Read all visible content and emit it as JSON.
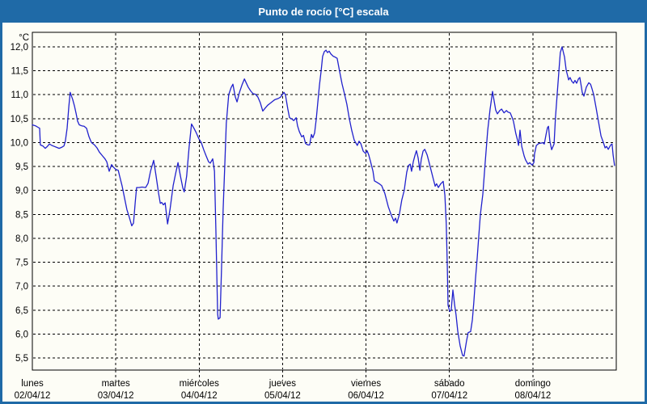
{
  "window": {
    "title": "Punto de rocío [°C] escala"
  },
  "colors": {
    "title_bar": "#1f6aa7",
    "window_border": "#1f6aa7",
    "title_text": "#ffffff",
    "plot_background": "#fdfdf6",
    "grid": "#000000",
    "line": "#2121cd"
  },
  "chart_data": {
    "type": "line",
    "title": "Punto de rocío [°C] escala",
    "ylabel": "°C",
    "y_unit": "°C",
    "ylim": [
      5.5,
      12.0
    ],
    "y_tick_step": 0.5,
    "decimal_separator": ",",
    "y_tick_labels": [
      "12,0",
      "11,5",
      "11,0",
      "10,5",
      "10,0",
      "9,5",
      "9,0",
      "8,5",
      "8,0",
      "7,5",
      "7,0",
      "6,5",
      "6,0",
      "5,5"
    ],
    "x_unit": "hours since lunes 02/04/12 00:00",
    "xlim": [
      0,
      168
    ],
    "x_day_labels": [
      {
        "name": "lunes",
        "date": "02/04/12"
      },
      {
        "name": "martes",
        "date": "03/04/12"
      },
      {
        "name": "miércoles",
        "date": "04/04/12"
      },
      {
        "name": "jueves",
        "date": "05/04/12"
      },
      {
        "name": "viernes",
        "date": "06/04/12"
      },
      {
        "name": "sábado",
        "date": "07/04/12"
      },
      {
        "name": "domingo",
        "date": "08/04/12"
      }
    ],
    "grid": "dashed",
    "legend": "none",
    "series": [
      {
        "name": "Punto de rocío",
        "color": "#2121cd",
        "points": [
          [
            0,
            10.37
          ],
          [
            0.9,
            10.35
          ],
          [
            1.6,
            10.32
          ],
          [
            2.1,
            10.3
          ],
          [
            2.3,
            9.95
          ],
          [
            3,
            9.93
          ],
          [
            3.7,
            9.88
          ],
          [
            4.2,
            9.91
          ],
          [
            4.9,
            9.97
          ],
          [
            5.6,
            9.94
          ],
          [
            6.3,
            9.92
          ],
          [
            7,
            9.9
          ],
          [
            7.7,
            9.88
          ],
          [
            8.4,
            9.9
          ],
          [
            9.1,
            9.93
          ],
          [
            9.5,
            10.03
          ],
          [
            10,
            10.3
          ],
          [
            10.5,
            10.75
          ],
          [
            10.9,
            11.05
          ],
          [
            11.6,
            10.9
          ],
          [
            12.1,
            10.77
          ],
          [
            12.6,
            10.6
          ],
          [
            13,
            10.45
          ],
          [
            13.5,
            10.37
          ],
          [
            14.2,
            10.35
          ],
          [
            14.9,
            10.34
          ],
          [
            15.6,
            10.3
          ],
          [
            16.3,
            10.12
          ],
          [
            17,
            10
          ],
          [
            17.9,
            9.95
          ],
          [
            18.6,
            9.89
          ],
          [
            19.3,
            9.8
          ],
          [
            20.2,
            9.72
          ],
          [
            20.9,
            9.66
          ],
          [
            21.4,
            9.6
          ],
          [
            22.1,
            9.4
          ],
          [
            22.8,
            9.54
          ],
          [
            23.3,
            9.49
          ],
          [
            24,
            9.44
          ],
          [
            24.7,
            9.42
          ],
          [
            25.1,
            9.3
          ],
          [
            25.8,
            9.1
          ],
          [
            26.5,
            8.85
          ],
          [
            27.2,
            8.6
          ],
          [
            27.9,
            8.44
          ],
          [
            28.6,
            8.26
          ],
          [
            29.1,
            8.32
          ],
          [
            29.6,
            8.75
          ],
          [
            30,
            9.06
          ],
          [
            30.7,
            9.06
          ],
          [
            31.6,
            9.07
          ],
          [
            32.6,
            9.06
          ],
          [
            33.3,
            9.15
          ],
          [
            34,
            9.4
          ],
          [
            34.9,
            9.63
          ],
          [
            35.6,
            9.3
          ],
          [
            36.3,
            8.95
          ],
          [
            36.8,
            8.73
          ],
          [
            37.2,
            8.75
          ],
          [
            37.7,
            8.7
          ],
          [
            38.2,
            8.74
          ],
          [
            38.9,
            8.3
          ],
          [
            39.6,
            8.6
          ],
          [
            40.5,
            9.1
          ],
          [
            41.2,
            9.35
          ],
          [
            41.9,
            9.58
          ],
          [
            42.6,
            9.3
          ],
          [
            43.3,
            9.05
          ],
          [
            43.7,
            8.97
          ],
          [
            44.4,
            9.3
          ],
          [
            45.1,
            9.9
          ],
          [
            45.8,
            10.39
          ],
          [
            46.5,
            10.3
          ],
          [
            47.2,
            10.2
          ],
          [
            47.9,
            10.08
          ],
          [
            48.6,
            10
          ],
          [
            49.3,
            9.85
          ],
          [
            50,
            9.72
          ],
          [
            50.7,
            9.6
          ],
          [
            51.2,
            9.57
          ],
          [
            51.9,
            9.66
          ],
          [
            52.4,
            9.4
          ],
          [
            52.8,
            8.2
          ],
          [
            53.3,
            6.42
          ],
          [
            53.5,
            6.31
          ],
          [
            54,
            6.34
          ],
          [
            54.4,
            7.3
          ],
          [
            54.9,
            8.6
          ],
          [
            55.4,
            9.6
          ],
          [
            55.8,
            10.4
          ],
          [
            56.5,
            11
          ],
          [
            57.2,
            11.15
          ],
          [
            57.7,
            11.22
          ],
          [
            58.4,
            10.95
          ],
          [
            58.9,
            10.85
          ],
          [
            59.6,
            11.05
          ],
          [
            60.3,
            11.2
          ],
          [
            61,
            11.33
          ],
          [
            61.7,
            11.22
          ],
          [
            62.1,
            11.16
          ],
          [
            62.8,
            11.08
          ],
          [
            63.5,
            11.02
          ],
          [
            64.2,
            11.01
          ],
          [
            64.9,
            10.95
          ],
          [
            65.6,
            10.83
          ],
          [
            66.3,
            10.66
          ],
          [
            67,
            10.72
          ],
          [
            67.7,
            10.78
          ],
          [
            68.4,
            10.82
          ],
          [
            69.1,
            10.86
          ],
          [
            69.8,
            10.9
          ],
          [
            70.7,
            10.92
          ],
          [
            71.4,
            10.95
          ],
          [
            71.9,
            11
          ],
          [
            72.4,
            11.05
          ],
          [
            72.8,
            11
          ],
          [
            73.5,
            10.7
          ],
          [
            74,
            10.52
          ],
          [
            74.5,
            10.5
          ],
          [
            75.2,
            10.46
          ],
          [
            75.9,
            10.52
          ],
          [
            76.3,
            10.35
          ],
          [
            76.8,
            10.23
          ],
          [
            77.5,
            10.12
          ],
          [
            78,
            10.15
          ],
          [
            78.6,
            9.98
          ],
          [
            79.3,
            9.95
          ],
          [
            79.8,
            9.95
          ],
          [
            80.3,
            10.17
          ],
          [
            80.7,
            10.1
          ],
          [
            81.2,
            10.2
          ],
          [
            81.7,
            10.5
          ],
          [
            82.1,
            10.81
          ],
          [
            82.6,
            11.2
          ],
          [
            83.1,
            11.5
          ],
          [
            83.5,
            11.8
          ],
          [
            84,
            11.9
          ],
          [
            84.5,
            11.93
          ],
          [
            84.9,
            11.88
          ],
          [
            85.4,
            11.91
          ],
          [
            85.9,
            11.85
          ],
          [
            86.6,
            11.8
          ],
          [
            87,
            11.79
          ],
          [
            87.7,
            11.76
          ],
          [
            88.4,
            11.49
          ],
          [
            89.1,
            11.23
          ],
          [
            89.8,
            11.02
          ],
          [
            90.5,
            10.8
          ],
          [
            91.2,
            10.5
          ],
          [
            91.9,
            10.25
          ],
          [
            92.6,
            10.05
          ],
          [
            93.1,
            9.99
          ],
          [
            93.5,
            9.94
          ],
          [
            94,
            10.03
          ],
          [
            94.5,
            9.98
          ],
          [
            95.2,
            9.82
          ],
          [
            95.9,
            9.77
          ],
          [
            96.3,
            9.83
          ],
          [
            96.8,
            9.74
          ],
          [
            97.3,
            9.6
          ],
          [
            98,
            9.4
          ],
          [
            98.4,
            9.2
          ],
          [
            99.1,
            9.17
          ],
          [
            99.8,
            9.14
          ],
          [
            100.5,
            9.1
          ],
          [
            101.4,
            8.94
          ],
          [
            102.4,
            8.66
          ],
          [
            103.3,
            8.48
          ],
          [
            104,
            8.36
          ],
          [
            104.5,
            8.42
          ],
          [
            104.9,
            8.32
          ],
          [
            105.6,
            8.5
          ],
          [
            106.3,
            8.8
          ],
          [
            107,
            9
          ],
          [
            107.7,
            9.38
          ],
          [
            108.2,
            9.52
          ],
          [
            108.7,
            9.55
          ],
          [
            109.1,
            9.4
          ],
          [
            109.6,
            9.6
          ],
          [
            110.1,
            9.74
          ],
          [
            110.5,
            9.83
          ],
          [
            111,
            9.68
          ],
          [
            111.5,
            9.42
          ],
          [
            111.9,
            9.65
          ],
          [
            112.4,
            9.82
          ],
          [
            112.9,
            9.86
          ],
          [
            113.6,
            9.74
          ],
          [
            114,
            9.63
          ],
          [
            114.7,
            9.43
          ],
          [
            115.4,
            9.23
          ],
          [
            115.9,
            9.09
          ],
          [
            116.3,
            9.14
          ],
          [
            116.8,
            9.06
          ],
          [
            117.5,
            9.14
          ],
          [
            118.2,
            9.19
          ],
          [
            118.7,
            8.9
          ],
          [
            119.1,
            8.3
          ],
          [
            119.4,
            7.4
          ],
          [
            119.6,
            6.6
          ],
          [
            120.1,
            6.47
          ],
          [
            120.5,
            6.5
          ],
          [
            121,
            6.92
          ],
          [
            121.5,
            6.6
          ],
          [
            121.9,
            6.4
          ],
          [
            122.4,
            6.06
          ],
          [
            123.1,
            5.75
          ],
          [
            123.8,
            5.55
          ],
          [
            124.2,
            5.54
          ],
          [
            124.9,
            5.85
          ],
          [
            125.4,
            6.03
          ],
          [
            126.1,
            6.05
          ],
          [
            126.6,
            6.3
          ],
          [
            127,
            6.65
          ],
          [
            127.5,
            7.15
          ],
          [
            128,
            7.6
          ],
          [
            128.4,
            8
          ],
          [
            128.9,
            8.5
          ],
          [
            129.6,
            8.92
          ],
          [
            130.3,
            9.6
          ],
          [
            131,
            10.25
          ],
          [
            131.7,
            10.7
          ],
          [
            132.2,
            10.95
          ],
          [
            132.4,
            11.07
          ],
          [
            132.9,
            10.85
          ],
          [
            133.3,
            10.68
          ],
          [
            133.8,
            10.6
          ],
          [
            134.5,
            10.67
          ],
          [
            135,
            10.7
          ],
          [
            135.7,
            10.62
          ],
          [
            136.4,
            10.67
          ],
          [
            136.8,
            10.64
          ],
          [
            137.5,
            10.62
          ],
          [
            138,
            10.53
          ],
          [
            138.4,
            10.45
          ],
          [
            139.1,
            10.19
          ],
          [
            139.6,
            10.05
          ],
          [
            139.9,
            9.94
          ],
          [
            140.3,
            10.26
          ],
          [
            140.8,
            9.92
          ],
          [
            141.5,
            9.72
          ],
          [
            141.9,
            9.64
          ],
          [
            142.6,
            9.55
          ],
          [
            143.1,
            9.58
          ],
          [
            143.8,
            9.53
          ],
          [
            144.3,
            9.58
          ],
          [
            144.5,
            9.77
          ],
          [
            145,
            9.94
          ],
          [
            145.7,
            9.98
          ],
          [
            146.4,
            9.99
          ],
          [
            146.8,
            10
          ],
          [
            147.3,
            9.97
          ],
          [
            147.8,
            10.17
          ],
          [
            148.2,
            10.31
          ],
          [
            148.5,
            10.34
          ],
          [
            148.9,
            10.03
          ],
          [
            149.4,
            9.85
          ],
          [
            149.8,
            9.92
          ],
          [
            150.1,
            9.97
          ],
          [
            150.5,
            10.52
          ],
          [
            151,
            11
          ],
          [
            151.5,
            11.5
          ],
          [
            151.9,
            11.88
          ],
          [
            152.4,
            12
          ],
          [
            152.9,
            11.85
          ],
          [
            153.1,
            11.79
          ],
          [
            153.6,
            11.51
          ],
          [
            154,
            11.4
          ],
          [
            154.3,
            11.31
          ],
          [
            154.7,
            11.36
          ],
          [
            155.2,
            11.28
          ],
          [
            155.7,
            11.24
          ],
          [
            156.1,
            11.3
          ],
          [
            156.6,
            11.24
          ],
          [
            157.1,
            11.33
          ],
          [
            157.5,
            11.36
          ],
          [
            158,
            11.15
          ],
          [
            158.2,
            11.05
          ],
          [
            158.7,
            10.97
          ],
          [
            159.4,
            11.16
          ],
          [
            160.1,
            11.25
          ],
          [
            160.6,
            11.22
          ],
          [
            161,
            11.13
          ],
          [
            161.5,
            11
          ],
          [
            162.2,
            10.72
          ],
          [
            162.9,
            10.43
          ],
          [
            163.6,
            10.14
          ],
          [
            164.3,
            10
          ],
          [
            164.8,
            9.89
          ],
          [
            165.2,
            9.92
          ],
          [
            165.7,
            9.86
          ],
          [
            166.4,
            9.95
          ],
          [
            166.8,
            9.97
          ],
          [
            167.1,
            9.74
          ],
          [
            167.5,
            9.52
          ]
        ]
      }
    ]
  }
}
